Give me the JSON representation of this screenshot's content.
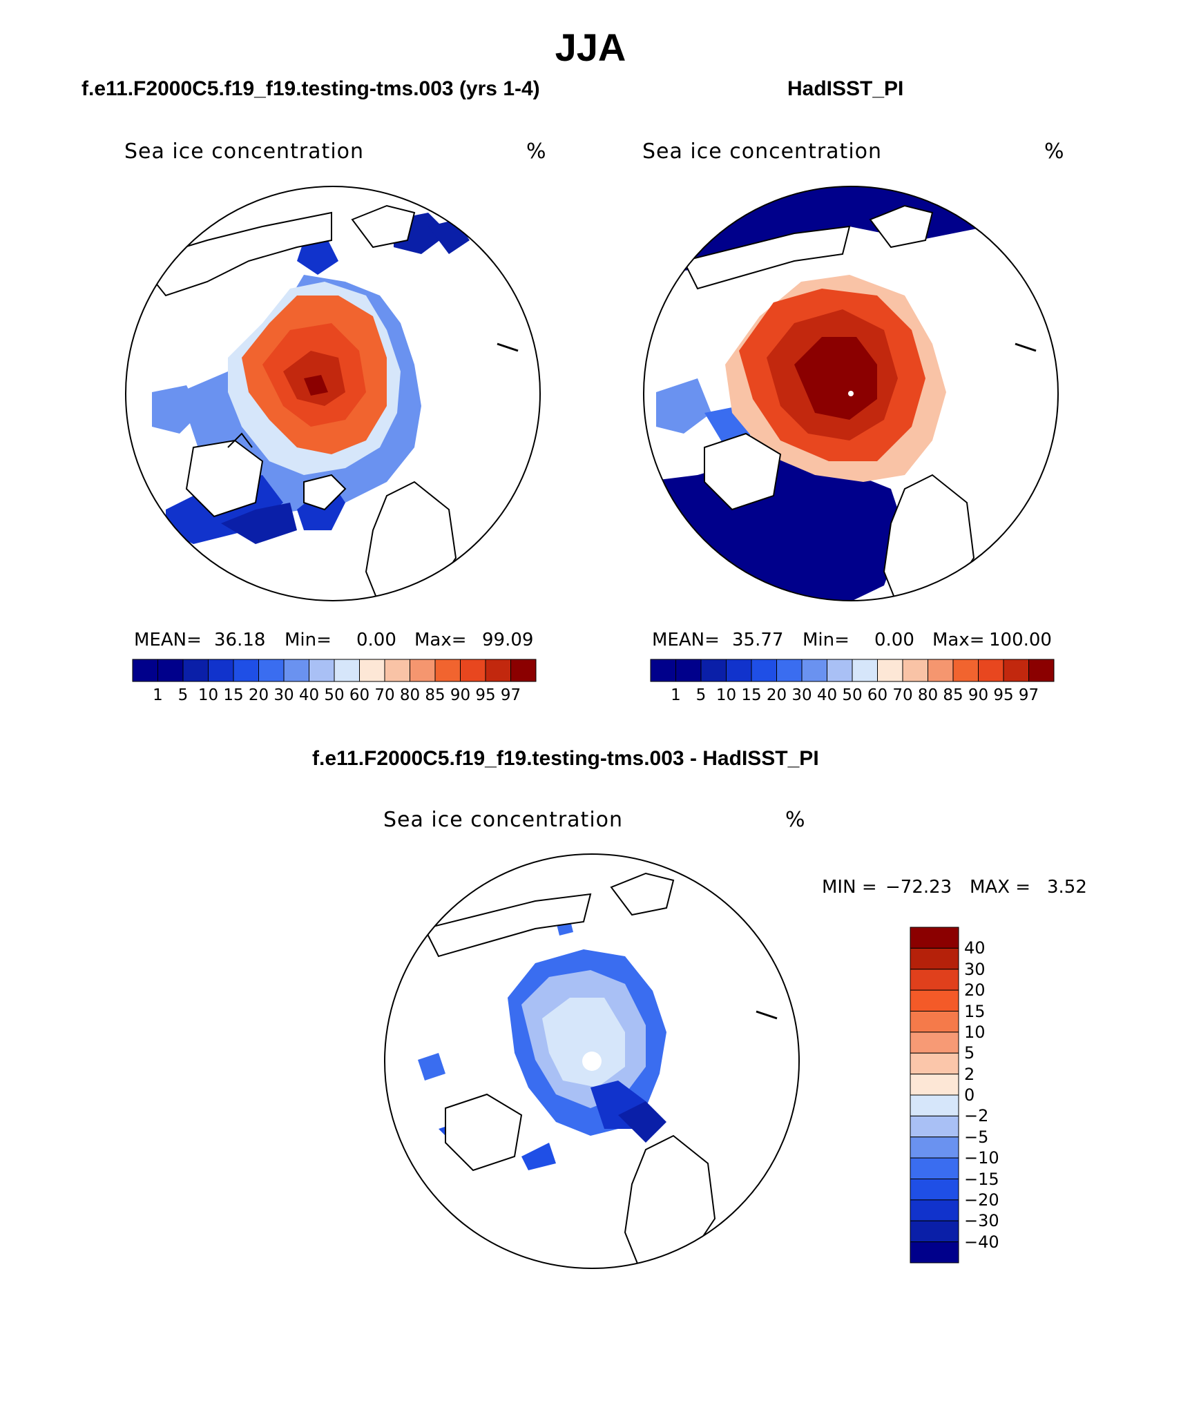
{
  "page_title": "JJA",
  "panels": [
    {
      "id": "model",
      "title": "f.e11.F2000C5.f19_f19.testing-tms.003 (yrs 1-4)",
      "variable": "Sea ice concentration",
      "units": "%",
      "stats": {
        "mean_label": "MEAN=",
        "mean": "36.18",
        "min_label": "Min=",
        "min": "0.00",
        "max_label": "Max=",
        "max": "99.09"
      }
    },
    {
      "id": "obs",
      "title": "HadISST_PI",
      "variable": "Sea ice concentration",
      "units": "%",
      "stats": {
        "mean_label": "MEAN=",
        "mean": "35.77",
        "min_label": "Min=",
        "min": "0.00",
        "max_label": "Max=",
        "max": "100.00"
      }
    },
    {
      "id": "diff",
      "title": "f.e11.F2000C5.f19_f19.testing-tms.003 - HadISST_PI",
      "variable": "Sea ice concentration",
      "units": "%",
      "stats": {
        "min_label": "MIN =",
        "min": "−72.23",
        "max_label": "MAX =",
        "max": "3.52"
      }
    }
  ],
  "colorbars": {
    "concentration": {
      "levels": [
        "1",
        "5",
        "10",
        "15",
        "20",
        "30",
        "40",
        "50",
        "60",
        "70",
        "80",
        "85",
        "90",
        "95",
        "97"
      ],
      "colors": [
        "#00008b",
        "#0a1fa8",
        "#1133cc",
        "#1f4fe6",
        "#3a6df0",
        "#6a92f0",
        "#a9c0f5",
        "#d6e6fa",
        "#fde7d6",
        "#f9c3a6",
        "#f5966f",
        "#f1642f",
        "#e8471f",
        "#c2280e",
        "#8b0000"
      ]
    },
    "difference": {
      "levels": [
        "40",
        "30",
        "20",
        "15",
        "10",
        "5",
        "2",
        "0",
        "−2",
        "−5",
        "−10",
        "−15",
        "−20",
        "−30",
        "−40"
      ],
      "colors": [
        "#8b0000",
        "#b5210a",
        "#e0401c",
        "#f45a28",
        "#f57a4a",
        "#f79a75",
        "#fbc6aa",
        "#fde7d6",
        "#d6e6fa",
        "#a9c0f5",
        "#6a92f0",
        "#3a6df0",
        "#1f4fe6",
        "#1133cc",
        "#0a1fa8",
        "#00008b"
      ]
    }
  },
  "chart_data": [
    {
      "type": "heatmap",
      "projection": "north-polar-stereographic",
      "title": "f.e11.F2000C5.f19_f19.testing-tms.003 (yrs 1-4)",
      "variable": "Sea ice concentration",
      "units": "%",
      "mean": 36.18,
      "min": 0.0,
      "max": 99.09,
      "levels": [
        1,
        5,
        10,
        15,
        20,
        30,
        40,
        50,
        60,
        70,
        80,
        85,
        90,
        95,
        97
      ]
    },
    {
      "type": "heatmap",
      "projection": "north-polar-stereographic",
      "title": "HadISST_PI",
      "variable": "Sea ice concentration",
      "units": "%",
      "mean": 35.77,
      "min": 0.0,
      "max": 100.0,
      "levels": [
        1,
        5,
        10,
        15,
        20,
        30,
        40,
        50,
        60,
        70,
        80,
        85,
        90,
        95,
        97
      ]
    },
    {
      "type": "heatmap",
      "projection": "north-polar-stereographic",
      "title": "f.e11.F2000C5.f19_f19.testing-tms.003 - HadISST_PI",
      "variable": "Sea ice concentration",
      "units": "%",
      "min": -72.23,
      "max": 3.52,
      "levels": [
        -40,
        -30,
        -20,
        -15,
        -10,
        -5,
        -2,
        0,
        2,
        5,
        10,
        15,
        20,
        30,
        40
      ]
    }
  ]
}
